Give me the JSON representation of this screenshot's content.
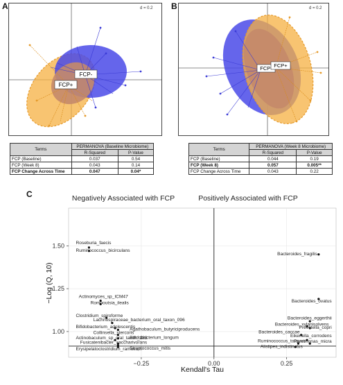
{
  "panels": {
    "a": {
      "letter": "A",
      "scale_label": "d = 0.2",
      "groups": [
        "FCP-",
        "FCP+"
      ],
      "table": {
        "header_terms": "Terms",
        "header_group": "PERMANOVA (Baseline Microbiome)",
        "col_r2": "R-Squared",
        "col_p": "P-Value",
        "rows": [
          {
            "term": "FCP (Baseline)",
            "r2": "0.037",
            "p": "0.54"
          },
          {
            "term": "FCP (Week 8)",
            "r2": "0.043",
            "p": "0.14"
          },
          {
            "term": "FCP Change Across Time",
            "r2": "0.047",
            "p": "0.04*"
          }
        ]
      }
    },
    "b": {
      "letter": "B",
      "scale_label": "d = 0.2",
      "groups": [
        "FCP-",
        "FCP+"
      ],
      "table": {
        "header_terms": "Terms",
        "header_group": "PERMANOVA (Week 8 Microbiome)",
        "col_r2": "R-Squared",
        "col_p": "P-Value",
        "rows": [
          {
            "term": "FCP (Baseline)",
            "r2": "0.044",
            "p": "0.19"
          },
          {
            "term": "FCP (Week 8)",
            "r2": "0.057",
            "p": "0.005**"
          },
          {
            "term": "FCP Change Across Time",
            "r2": "0.043",
            "p": "0.22"
          }
        ]
      }
    },
    "c": {
      "letter": "C",
      "neg_title": "Negatively Associated with FCP",
      "pos_title": "Positively Associated with FCP"
    }
  },
  "colors": {
    "fcp_pos": "#f5b041",
    "fcp_neg": "#4a4ae8",
    "overlap": "#c48a6a"
  },
  "chart_data": {
    "type": "scatter",
    "xlabel": "Kendall's Tau",
    "ylabel": "−Log (Q, 10)",
    "xlim": [
      -0.5,
      0.42
    ],
    "ylim": [
      0.85,
      1.72
    ],
    "xticks": [
      -0.25,
      0,
      0.25
    ],
    "xtick_labels": [
      "−0.25",
      "0.00",
      "0.25"
    ],
    "yticks": [
      1.0,
      1.25,
      1.5
    ],
    "ytick_labels": [
      "1.00",
      "1.25",
      "1.50"
    ],
    "points": [
      {
        "name": "Roseburia_faecis",
        "x": -0.43,
        "y": 1.49
      },
      {
        "name": "Ruminococcus_bicirculans",
        "x": -0.43,
        "y": 1.47
      },
      {
        "name": "Actinomyces_sp_ICM47",
        "x": -0.39,
        "y": 1.18
      },
      {
        "name": "Romboutsia_ilealis",
        "x": -0.39,
        "y": 1.16
      },
      {
        "name": "Clostridium_spiroforme",
        "x": -0.37,
        "y": 1.08
      },
      {
        "name": "Lachnospiraceae_bacterium_oral_taxon_096",
        "x": -0.35,
        "y": 1.05
      },
      {
        "name": "Bifidobacterium_adolescentis",
        "x": -0.34,
        "y": 1.02
      },
      {
        "name": "Agathobaculum_butyriciproducens",
        "x": -0.33,
        "y": 1.01
      },
      {
        "name": "Collinsella_stercoris",
        "x": -0.33,
        "y": 0.98
      },
      {
        "name": "Bifidobacterium_longum",
        "x": -0.33,
        "y": 0.96
      },
      {
        "name": "Actinobaculum_sp_oral_taxon_183",
        "x": -0.34,
        "y": 0.95
      },
      {
        "name": "Fusicatenibacter_saccharivorans",
        "x": -0.33,
        "y": 0.93
      },
      {
        "name": "Streptococcus_mitis",
        "x": -0.33,
        "y": 0.92
      },
      {
        "name": "Erysipelatoclostridium_ramosum",
        "x": -0.33,
        "y": 0.91
      },
      {
        "name": "Bacteroides_fragilis",
        "x": 0.36,
        "y": 1.45
      },
      {
        "name": "Bacteroides_ovatus",
        "x": 0.36,
        "y": 1.19
      },
      {
        "name": "Bacteroides_eggerthii",
        "x": 0.33,
        "y": 1.06
      },
      {
        "name": "Bacteroides_xylanisolvens",
        "x": 0.32,
        "y": 1.03
      },
      {
        "name": "Prevotella_copri",
        "x": 0.33,
        "y": 1.02
      },
      {
        "name": "Bacteroides_caccae",
        "x": 0.3,
        "y": 0.98
      },
      {
        "name": "Eikenella_corrodens",
        "x": 0.32,
        "y": 0.95
      },
      {
        "name": "Parvimonas_micra",
        "x": 0.33,
        "y": 0.93
      },
      {
        "name": "Ruminococcus_torques",
        "x": 0.29,
        "y": 0.93
      },
      {
        "name": "Alistipes_indistinctus",
        "x": 0.28,
        "y": 0.91
      }
    ]
  }
}
